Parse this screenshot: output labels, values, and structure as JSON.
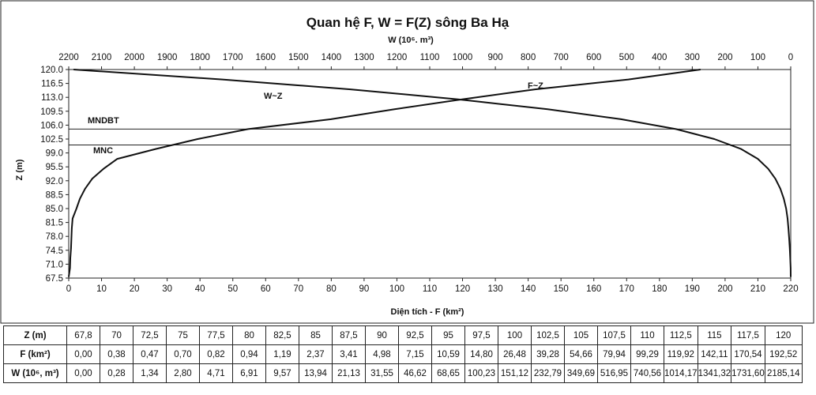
{
  "chart_data": {
    "type": "line",
    "title": "Quan hệ F, W = F(Z) sông Ba Hạ",
    "x_bottom_label": "Diện tích - F (km²)",
    "x_top_label": "W (10⁶. m³)",
    "ylabel": "Z (m)",
    "x_bottom_range": [
      0,
      220
    ],
    "x_top_range": [
      2200,
      0
    ],
    "y_range": [
      67.5,
      120.0
    ],
    "x_bottom_ticks": [
      "0",
      "10",
      "20",
      "30",
      "40",
      "50",
      "60",
      "70",
      "80",
      "90",
      "100",
      "110",
      "120",
      "130",
      "140",
      "150",
      "160",
      "170",
      "180",
      "190",
      "200",
      "210",
      "220"
    ],
    "x_top_ticks": [
      "2200",
      "2100",
      "2000",
      "1900",
      "1800",
      "1700",
      "1600",
      "1500",
      "1400",
      "1300",
      "1200",
      "1100",
      "1000",
      "900",
      "800",
      "700",
      "600",
      "500",
      "400",
      "300",
      "200",
      "100",
      "0"
    ],
    "y_ticks": [
      "120.0",
      "116.5",
      "113.0",
      "109.5",
      "106.0",
      "102.5",
      "99.0",
      "95.5",
      "92.0",
      "88.5",
      "85.0",
      "81.5",
      "78.0",
      "74.5",
      "71.0",
      "67.5"
    ],
    "series": [
      {
        "name": "F~Z",
        "axis": "bottom",
        "z": [
          67.8,
          70,
          72.5,
          75,
          77.5,
          80,
          82.5,
          85,
          87.5,
          90,
          92.5,
          95,
          97.5,
          100,
          102.5,
          105,
          107.5,
          110,
          112.5,
          115,
          117.5,
          120
        ],
        "values": [
          0,
          0.38,
          0.47,
          0.7,
          0.82,
          0.94,
          1.19,
          2.37,
          3.41,
          4.98,
          7.15,
          10.59,
          14.8,
          26.48,
          39.28,
          54.66,
          79.94,
          99.29,
          119.92,
          142.11,
          170.54,
          192.52
        ]
      },
      {
        "name": "W~Z",
        "axis": "top",
        "z": [
          67.8,
          70,
          72.5,
          75,
          77.5,
          80,
          82.5,
          85,
          87.5,
          90,
          92.5,
          95,
          97.5,
          100,
          102.5,
          105,
          107.5,
          110,
          112.5,
          115,
          117.5,
          120
        ],
        "values": [
          0,
          0.28,
          1.34,
          2.8,
          4.71,
          6.91,
          9.57,
          13.94,
          21.13,
          31.55,
          46.62,
          68.65,
          100.23,
          151.12,
          232.79,
          349.69,
          516.95,
          740.56,
          1014.17,
          1341.32,
          1731.6,
          2185.14
        ]
      }
    ],
    "reference_lines": [
      {
        "label": "MNDBT",
        "z": 105.0
      },
      {
        "label": "MNC",
        "z": 101.0
      }
    ]
  },
  "table": {
    "row_headers": [
      "Z (m)",
      "F (km²)",
      "W (10⁶, m³)"
    ],
    "rows": [
      [
        "67,8",
        "70",
        "72,5",
        "75",
        "77,5",
        "80",
        "82,5",
        "85",
        "87,5",
        "90",
        "92,5",
        "95",
        "97,5",
        "100",
        "102,5",
        "105",
        "107,5",
        "110",
        "112,5",
        "115",
        "117,5",
        "120"
      ],
      [
        "0,00",
        "0,38",
        "0,47",
        "0,70",
        "0,82",
        "0,94",
        "1,19",
        "2,37",
        "3,41",
        "4,98",
        "7,15",
        "10,59",
        "14,80",
        "26,48",
        "39,28",
        "54,66",
        "79,94",
        "99,29",
        "119,92",
        "142,11",
        "170,54",
        "192,52"
      ],
      [
        "0,00",
        "0,28",
        "1,34",
        "2,80",
        "4,71",
        "6,91",
        "9,57",
        "13,94",
        "21,13",
        "31,55",
        "46,62",
        "68,65",
        "100,23",
        "151,12",
        "232,79",
        "349,69",
        "516,95",
        "740,56",
        "1014,17",
        "1341,32",
        "1731,60",
        "2185,14"
      ]
    ]
  }
}
